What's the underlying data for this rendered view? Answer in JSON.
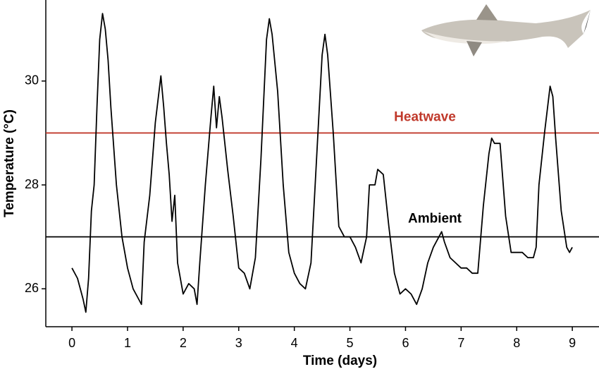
{
  "chart_data": {
    "type": "line",
    "xlabel": "Time (days)",
    "ylabel": "Temperature (°C)",
    "x": [
      0.0,
      0.1,
      0.2,
      0.25,
      0.3,
      0.35,
      0.4,
      0.45,
      0.5,
      0.55,
      0.6,
      0.65,
      0.7,
      0.8,
      0.9,
      1.0,
      1.1,
      1.2,
      1.25,
      1.3,
      1.4,
      1.5,
      1.6,
      1.65,
      1.7,
      1.75,
      1.8,
      1.85,
      1.9,
      2.0,
      2.1,
      2.2,
      2.25,
      2.3,
      2.4,
      2.5,
      2.55,
      2.6,
      2.65,
      2.7,
      2.8,
      2.9,
      3.0,
      3.1,
      3.2,
      3.3,
      3.4,
      3.5,
      3.55,
      3.6,
      3.7,
      3.8,
      3.9,
      4.0,
      4.1,
      4.2,
      4.3,
      4.4,
      4.5,
      4.55,
      4.6,
      4.7,
      4.8,
      4.9,
      5.0,
      5.1,
      5.2,
      5.3,
      5.35,
      5.45,
      5.5,
      5.6,
      5.7,
      5.8,
      5.9,
      6.0,
      6.1,
      6.2,
      6.3,
      6.4,
      6.5,
      6.6,
      6.65,
      6.7,
      6.8,
      6.9,
      7.0,
      7.1,
      7.2,
      7.3,
      7.4,
      7.5,
      7.55,
      7.6,
      7.7,
      7.8,
      7.9,
      8.0,
      8.1,
      8.2,
      8.3,
      8.35,
      8.4,
      8.5,
      8.6,
      8.65,
      8.7,
      8.8,
      8.9,
      8.95,
      9.0
    ],
    "values": [
      26.4,
      26.2,
      25.8,
      25.55,
      26.2,
      27.5,
      28.0,
      29.5,
      30.8,
      31.3,
      31.0,
      30.4,
      29.5,
      28.0,
      27.0,
      26.4,
      26.0,
      25.8,
      25.7,
      26.9,
      27.8,
      29.2,
      30.1,
      29.5,
      28.8,
      28.2,
      27.3,
      27.8,
      26.5,
      25.9,
      26.1,
      26.0,
      25.7,
      26.5,
      28.0,
      29.3,
      29.9,
      29.1,
      29.7,
      29.3,
      28.3,
      27.4,
      26.4,
      26.3,
      26.0,
      26.6,
      28.5,
      30.8,
      31.2,
      30.9,
      29.8,
      28.0,
      26.7,
      26.3,
      26.1,
      26.0,
      26.5,
      28.5,
      30.5,
      30.9,
      30.5,
      29.0,
      27.2,
      27.0,
      27.0,
      26.8,
      26.5,
      27.0,
      28.0,
      28.0,
      28.3,
      28.2,
      27.2,
      26.3,
      25.9,
      26.0,
      25.9,
      25.7,
      26.0,
      26.5,
      26.8,
      27.0,
      27.1,
      26.9,
      26.6,
      26.5,
      26.4,
      26.4,
      26.3,
      26.3,
      27.6,
      28.6,
      28.9,
      28.8,
      28.8,
      27.4,
      26.7,
      26.7,
      26.7,
      26.6,
      26.6,
      26.8,
      28.0,
      29.0,
      29.9,
      29.7,
      28.9,
      27.5,
      26.8,
      26.7,
      26.8
    ],
    "color": "#000000",
    "hlines": [
      {
        "label": "Heatwave",
        "value": 29,
        "color": "#c0392b"
      },
      {
        "label": "Ambient",
        "value": 27,
        "color": "#000000"
      }
    ],
    "xlim": [
      -0.47,
      9.48
    ],
    "xticks": [
      0,
      1,
      2,
      3,
      4,
      5,
      6,
      7,
      8,
      9
    ],
    "ylim": [
      25.27,
      31.56
    ],
    "yticks": [
      26,
      28,
      30
    ]
  }
}
